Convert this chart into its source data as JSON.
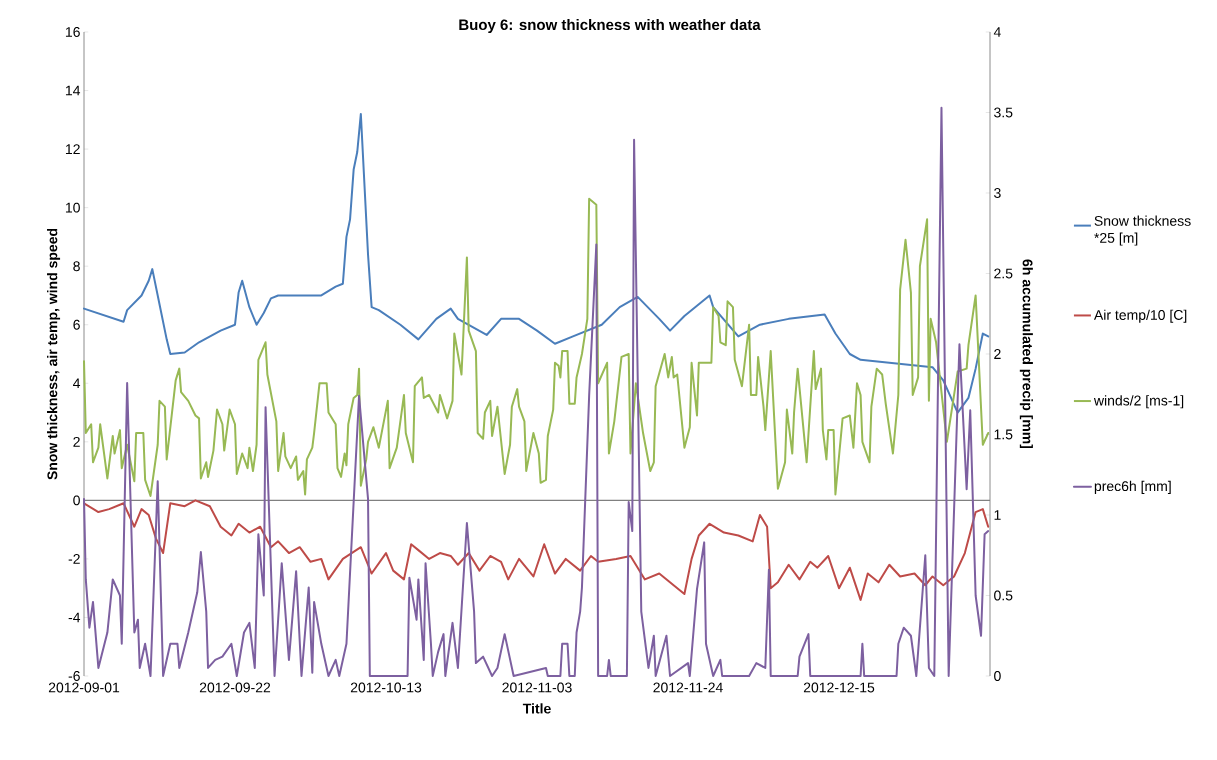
{
  "chart_data": {
    "type": "line",
    "title": "Buoy 6: snow thickness with weather data",
    "xlabel": "Title",
    "ylabel": "Snow thickness, air temp, wind speed",
    "y2label": "6h accumulated precip [mm]",
    "xlim": [
      "2012-09-01",
      "2013-01-05"
    ],
    "xticks": [
      "2012-09-01",
      "2012-09-22",
      "2012-10-13",
      "2012-11-03",
      "2012-11-24",
      "2012-12-15"
    ],
    "ylim": [
      -6,
      16
    ],
    "yticks": [
      -6,
      -4,
      -2,
      0,
      2,
      4,
      6,
      8,
      10,
      12,
      14,
      16
    ],
    "y2lim": [
      0,
      4
    ],
    "y2ticks": [
      0,
      0.5,
      1,
      1.5,
      2,
      2.5,
      3,
      3.5,
      4
    ],
    "legend": "right",
    "series": [
      {
        "name": "Snow thickness *25 [m]",
        "color": "#4a7ebb",
        "x": [
          "2012-09-01",
          "2012-09-06T12:00",
          "2012-09-07",
          "2012-09-09",
          "2012-09-10",
          "2012-09-10T12:00",
          "2012-09-11T12:00",
          "2012-09-12T12:00",
          "2012-09-13",
          "2012-09-15",
          "2012-09-17",
          "2012-09-20",
          "2012-09-22",
          "2012-09-22T12:00",
          "2012-09-23",
          "2012-09-24",
          "2012-09-25",
          "2012-09-26",
          "2012-09-27",
          "2012-09-28",
          "2012-10-04",
          "2012-10-06",
          "2012-10-07",
          "2012-10-07T12:00",
          "2012-10-08",
          "2012-10-08T12:00",
          "2012-10-09",
          "2012-10-09T12:00",
          "2012-10-10T12:00",
          "2012-10-11",
          "2012-10-12",
          "2012-10-15",
          "2012-10-17T12:00",
          "2012-10-20",
          "2012-10-22",
          "2012-10-23",
          "2012-10-27",
          "2012-10-29",
          "2012-10-31T12:00",
          "2012-11-03",
          "2012-11-05T12:00",
          "2012-11-08",
          "2012-11-12",
          "2012-11-14T12:00",
          "2012-11-17",
          "2012-11-20",
          "2012-11-21T12:00",
          "2012-11-23T12:00",
          "2012-11-27",
          "2012-11-27T12:00",
          "2012-12-01",
          "2012-12-04",
          "2012-12-08",
          "2012-12-13",
          "2012-12-14T12:00",
          "2012-12-16T12:00",
          "2012-12-18",
          "2012-12-28",
          "2012-12-29T12:00",
          "2012-12-31T12:00",
          "2013-01-02",
          "2013-01-03",
          "2013-01-04",
          "2013-01-04T18:00"
        ],
        "values": [
          6.55,
          6.1,
          6.5,
          7.0,
          7.5,
          7.9,
          6.7,
          5.5,
          5.0,
          5.05,
          5.4,
          5.8,
          6.0,
          7.1,
          7.5,
          6.6,
          6.0,
          6.4,
          6.9,
          7.0,
          7.0,
          7.3,
          7.4,
          9.0,
          9.6,
          11.3,
          11.9,
          13.2,
          8.4,
          6.6,
          6.5,
          6.0,
          5.5,
          6.2,
          6.55,
          6.2,
          5.65,
          6.2,
          6.2,
          5.8,
          5.35,
          5.6,
          6.0,
          6.6,
          6.95,
          6.2,
          5.8,
          6.3,
          7.0,
          6.6,
          5.6,
          6.0,
          6.2,
          6.35,
          5.7,
          5.0,
          4.8,
          4.55,
          4.1,
          3.0,
          3.5,
          4.5,
          5.7,
          5.6
        ]
      },
      {
        "name": "Air temp/10 [C]",
        "color": "#be4b48",
        "x": [
          "2012-09-01",
          "2012-09-03",
          "2012-09-04T12:00",
          "2012-09-06T12:00",
          "2012-09-08",
          "2012-09-09",
          "2012-09-10",
          "2012-09-11",
          "2012-09-12",
          "2012-09-13",
          "2012-09-15",
          "2012-09-16T12:00",
          "2012-09-18T12:00",
          "2012-09-20",
          "2012-09-21T12:00",
          "2012-09-22T12:00",
          "2012-09-24",
          "2012-09-25T12:00",
          "2012-09-27",
          "2012-09-28",
          "2012-09-29T12:00",
          "2012-10-01",
          "2012-10-02T12:00",
          "2012-10-04",
          "2012-10-05",
          "2012-10-07",
          "2012-10-09T12:00",
          "2012-10-11",
          "2012-10-13",
          "2012-10-14",
          "2012-10-15T12:00",
          "2012-10-16T12:00",
          "2012-10-17T12:00",
          "2012-10-19",
          "2012-10-20T12:00",
          "2012-10-22",
          "2012-10-23",
          "2012-10-24T12:00",
          "2012-10-26",
          "2012-10-27T12:00",
          "2012-10-29",
          "2012-10-30",
          "2012-10-31T12:00",
          "2012-11-02T12:00",
          "2012-11-04",
          "2012-11-05T12:00",
          "2012-11-07",
          "2012-11-09",
          "2012-11-10T12:00",
          "2012-11-11T12:00",
          "2012-11-14",
          "2012-11-16",
          "2012-11-18",
          "2012-11-20",
          "2012-11-22",
          "2012-11-23T12:00",
          "2012-11-24T12:00",
          "2012-11-25T12:00",
          "2012-11-27",
          "2012-11-29",
          "2012-12-01",
          "2012-12-03",
          "2012-12-04",
          "2012-12-05",
          "2012-12-05T12:00",
          "2012-12-06T12:00",
          "2012-12-08",
          "2012-12-09T12:00",
          "2012-12-11",
          "2012-12-12",
          "2012-12-13T12:00",
          "2012-12-15",
          "2012-12-16T12:00",
          "2012-12-18",
          "2012-12-19",
          "2012-12-20T12:00",
          "2012-12-22",
          "2012-12-23T12:00",
          "2012-12-25T12:00",
          "2012-12-27",
          "2012-12-28",
          "2012-12-29T12:00",
          "2012-12-31",
          "2013-01-01T12:00",
          "2013-01-03",
          "2013-01-04",
          "2013-01-04T18:00"
        ],
        "values": [
          -0.1,
          -0.4,
          -0.3,
          -0.1,
          -0.9,
          -0.3,
          -0.5,
          -1.3,
          -1.8,
          -0.1,
          -0.2,
          0.0,
          -0.2,
          -0.9,
          -1.2,
          -0.8,
          -1.1,
          -0.9,
          -1.6,
          -1.4,
          -1.8,
          -1.6,
          -2.1,
          -2.0,
          -2.7,
          -2.0,
          -1.6,
          -2.5,
          -1.8,
          -2.4,
          -2.7,
          -1.5,
          -1.7,
          -2.0,
          -1.8,
          -1.9,
          -2.2,
          -1.8,
          -2.4,
          -1.9,
          -2.1,
          -2.7,
          -2.0,
          -2.6,
          -1.5,
          -2.5,
          -2.0,
          -2.4,
          -1.9,
          -2.1,
          -2.0,
          -1.9,
          -2.7,
          -2.5,
          -2.9,
          -3.2,
          -2.0,
          -1.2,
          -0.8,
          -1.1,
          -1.2,
          -1.4,
          -0.5,
          -0.9,
          -3.0,
          -2.8,
          -2.2,
          -2.7,
          -2.1,
          -2.3,
          -1.9,
          -3.0,
          -2.3,
          -3.4,
          -2.5,
          -2.8,
          -2.2,
          -2.6,
          -2.5,
          -2.9,
          -2.6,
          -2.9,
          -2.6,
          -1.8,
          -0.4,
          -0.3,
          -0.9
        ]
      },
      {
        "name": "winds/2 [ms-1]",
        "color": "#98b954",
        "x": [
          "2012-09-01",
          "2012-09-01T06:00",
          "2012-09-02",
          "2012-09-02T06:00",
          "2012-09-03",
          "2012-09-03T06:00",
          "2012-09-04T06:00",
          "2012-09-05",
          "2012-09-05T06:00",
          "2012-09-06",
          "2012-09-06T06:00",
          "2012-09-07",
          "2012-09-08",
          "2012-09-08T06:00",
          "2012-09-09T06:00",
          "2012-09-09T12:00",
          "2012-09-10T06:00",
          "2012-09-11T06:00",
          "2012-09-11T12:00",
          "2012-09-12T06:00",
          "2012-09-12T12:00",
          "2012-09-13T18:00",
          "2012-09-14T06:00",
          "2012-09-14T12:00",
          "2012-09-15T12:00",
          "2012-09-16T12:00",
          "2012-09-17",
          "2012-09-17T06:00",
          "2012-09-18",
          "2012-09-18T06:00",
          "2012-09-19",
          "2012-09-19T12:00",
          "2012-09-20T06:00",
          "2012-09-20T12:00",
          "2012-09-21T06:00",
          "2012-09-22",
          "2012-09-22T06:00",
          "2012-09-23",
          "2012-09-23T18:00",
          "2012-09-24",
          "2012-09-24T12:00",
          "2012-09-25",
          "2012-09-25T06:00",
          "2012-09-26T06:00",
          "2012-09-26T12:00",
          "2012-09-27T18:00",
          "2012-09-28",
          "2012-09-28T18:00",
          "2012-09-29",
          "2012-09-29T18:00",
          "2012-09-30T12:00",
          "2012-09-30T18:00",
          "2012-10-01T12:00",
          "2012-10-01T18:00",
          "2012-10-02",
          "2012-10-02T18:00",
          "2012-10-03",
          "2012-10-03T18:00",
          "2012-10-04T18:00",
          "2012-10-05",
          "2012-10-06",
          "2012-10-06T06:00",
          "2012-10-06T18:00",
          "2012-10-07T06:00",
          "2012-10-07T12:00",
          "2012-10-07T18:00",
          "2012-10-08T12:00",
          "2012-10-09",
          "2012-10-09T06:00",
          "2012-10-09T12:00",
          "2012-10-10T06:00",
          "2012-10-10T12:00",
          "2012-10-11T06:00",
          "2012-10-12",
          "2012-10-13T06:00",
          "2012-10-13T12:00",
          "2012-10-14T12:00",
          "2012-10-15T12:00",
          "2012-10-15T18:00",
          "2012-10-16T18:00",
          "2012-10-17",
          "2012-10-18",
          "2012-10-18T06:00",
          "2012-10-19",
          "2012-10-20T06:00",
          "2012-10-20T12:00",
          "2012-10-21T12:00",
          "2012-10-22T06:00",
          "2012-10-22T12:00",
          "2012-10-23T12:00",
          "2012-10-24T06:00",
          "2012-10-24T12:00",
          "2012-10-25T12:00",
          "2012-10-25T18:00",
          "2012-10-26T12:00",
          "2012-10-26T18:00",
          "2012-10-27T12:00",
          "2012-10-27T18:00",
          "2012-10-28T12:00",
          "2012-10-29T12:00",
          "2012-10-30T06:00",
          "2012-10-30T12:00",
          "2012-10-31T06:00",
          "2012-10-31T12:00",
          "2012-11-01T06:00",
          "2012-11-01T12:00",
          "2012-11-02T12:00",
          "2012-11-03T06:00",
          "2012-11-03T12:00",
          "2012-11-04T06:00",
          "2012-11-04T12:00",
          "2012-11-05T06:00",
          "2012-11-05T12:00",
          "2012-11-06",
          "2012-11-06T06:00",
          "2012-11-06T12:00",
          "2012-11-07T06:00",
          "2012-11-07T12:00",
          "2012-11-08T06:00",
          "2012-11-08T12:00",
          "2012-11-09T06:00",
          "2012-11-10",
          "2012-11-10T06:00",
          "2012-11-11T06:00",
          "2012-11-11T12:00",
          "2012-11-12T18:00",
          "2012-11-13",
          "2012-11-13T18:00",
          "2012-11-14T18:00",
          "2012-11-15T18:00",
          "2012-11-16",
          "2012-11-16T18:00",
          "2012-11-17T18:00",
          "2012-11-18T18:00",
          "2012-11-19T06:00",
          "2012-11-19T12:00",
          "2012-11-20T18:00",
          "2012-11-21T06:00",
          "2012-11-21T18:00",
          "2012-11-22",
          "2012-11-22T12:00",
          "2012-11-23T12:00",
          "2012-11-24T06:00",
          "2012-11-24T12:00",
          "2012-11-25T06:00",
          "2012-11-25T12:00",
          "2012-11-27T06:00",
          "2012-11-27T12:00",
          "2012-11-28T06:00",
          "2012-11-28T12:00",
          "2012-11-29T06:00",
          "2012-11-29T12:00",
          "2012-11-30T06:00",
          "2012-11-30T12:00",
          "2012-12-01T12:00",
          "2012-12-02T12:00",
          "2012-12-02T18:00",
          "2012-12-03T12:00",
          "2012-12-03T18:00",
          "2012-12-04T12:00",
          "2012-12-04T18:00",
          "2012-12-05T12:00",
          "2012-12-06T12:00",
          "2012-12-07T12:00",
          "2012-12-07T18:00",
          "2012-12-08T12:00",
          "2012-12-08T18:00",
          "2012-12-09T06:00",
          "2012-12-10T12:00",
          "2012-12-11T12:00",
          "2012-12-11T18:00",
          "2012-12-12T12:00",
          "2012-12-12T18:00",
          "2012-12-13T06:00",
          "2012-12-13T12:00",
          "2012-12-14T06:00",
          "2012-12-14T12:00",
          "2012-12-15T12:00",
          "2012-12-16T12:00",
          "2012-12-17",
          "2012-12-17T12:00",
          "2012-12-18",
          "2012-12-18T06:00",
          "2012-12-19T06:00",
          "2012-12-19T12:00",
          "2012-12-20T06:00",
          "2012-12-21",
          "2012-12-21T12:00",
          "2012-12-22T12:00",
          "2012-12-23T06:00",
          "2012-12-23T12:00",
          "2012-12-24T06:00",
          "2012-12-25",
          "2012-12-25T06:00",
          "2012-12-26",
          "2012-12-26T06:00",
          "2012-12-27T06:00",
          "2012-12-27T12:00",
          "2012-12-27T18:00",
          "2012-12-28T12:00",
          "2012-12-30",
          "2012-12-31T12:00",
          "2013-01-01T18:00",
          "2013-01-02",
          "2013-01-03",
          "2013-01-04",
          "2013-01-04T18:00"
        ],
        "values": [
          4.75,
          2.3,
          2.6,
          1.3,
          1.8,
          2.6,
          0.75,
          2.2,
          1.6,
          2.4,
          1.1,
          1.9,
          0.65,
          2.3,
          2.3,
          0.7,
          0.15,
          1.9,
          3.4,
          3.2,
          1.4,
          4.1,
          4.5,
          3.7,
          3.4,
          2.9,
          2.8,
          0.75,
          1.3,
          0.8,
          1.7,
          3.1,
          2.6,
          1.7,
          3.1,
          2.6,
          0.9,
          1.6,
          1.1,
          1.8,
          1.0,
          1.9,
          4.8,
          5.4,
          4.3,
          2.7,
          1.0,
          2.3,
          1.5,
          1.1,
          1.5,
          0.7,
          1.0,
          0.2,
          1.4,
          1.8,
          2.3,
          4.0,
          4.0,
          3.0,
          2.6,
          1.1,
          0.8,
          1.6,
          1.2,
          2.6,
          3.5,
          3.6,
          4.5,
          0.5,
          1.4,
          2.0,
          2.5,
          1.8,
          3.4,
          1.1,
          1.8,
          3.6,
          2.3,
          1.3,
          3.9,
          4.2,
          3.5,
          3.6,
          3.0,
          3.6,
          2.8,
          3.4,
          5.7,
          4.3,
          8.3,
          5.8,
          5.1,
          2.3,
          2.1,
          3.0,
          3.4,
          2.2,
          3.2,
          0.9,
          1.9,
          3.2,
          3.8,
          3.2,
          2.7,
          1.0,
          2.3,
          1.6,
          0.6,
          0.7,
          2.2,
          3.1,
          4.7,
          4.6,
          4.2,
          5.1,
          5.1,
          3.3,
          3.3,
          4.2,
          5.0,
          6.2,
          10.3,
          10.1,
          4.0,
          4.7,
          1.6,
          2.7,
          4.9,
          5.0,
          1.6,
          4.0,
          2.3,
          1.0,
          1.3,
          3.9,
          5.0,
          4.2,
          4.9,
          4.2,
          4.3,
          1.8,
          2.5,
          4.7,
          2.9,
          4.7,
          4.7,
          6.6,
          6.3,
          5.4,
          5.3,
          6.8,
          6.6,
          4.8,
          3.9,
          6.0,
          3.6,
          3.6,
          4.9,
          3.2,
          2.4,
          5.1,
          0.4,
          1.3,
          3.1,
          1.6,
          3.0,
          4.5,
          1.3,
          5.1,
          3.8,
          4.5,
          2.4,
          1.4,
          2.4,
          2.4,
          0.2,
          2.8,
          2.9,
          1.8,
          4.0,
          3.6,
          2.0,
          1.3,
          3.2,
          4.5,
          4.3,
          3.3,
          1.6,
          3.6,
          7.2,
          8.9,
          7.1,
          3.6,
          4.2,
          8.0,
          9.6,
          3.4,
          6.2,
          5.4,
          2.0,
          4.4,
          4.5,
          5.3,
          7.0,
          1.9,
          2.3
        ]
      },
      {
        "name": "prec6h [mm]",
        "color": "#7d60a0",
        "axis": "y2",
        "x": [
          "2012-09-01",
          "2012-09-01T06:00",
          "2012-09-01T18:00",
          "2012-09-02T06:00",
          "2012-09-03",
          "2012-09-04T06:00",
          "2012-09-05",
          "2012-09-06",
          "2012-09-06T06:00",
          "2012-09-07",
          "2012-09-08",
          "2012-09-08T12:00",
          "2012-09-08T18:00",
          "2012-09-09T12:00",
          "2012-09-10T06:00",
          "2012-09-11T06:00",
          "2012-09-12",
          "2012-09-13",
          "2012-09-14",
          "2012-09-14T06:00",
          "2012-09-15T12:00",
          "2012-09-16T18:00",
          "2012-09-17T06:00",
          "2012-09-18",
          "2012-09-18T06:00",
          "2012-09-19T06:00",
          "2012-09-20T06:00",
          "2012-09-21T12:00",
          "2012-09-22T06:00",
          "2012-09-23T06:00",
          "2012-09-24",
          "2012-09-24T18:00",
          "2012-09-25T06:00",
          "2012-09-26",
          "2012-09-26T06:00",
          "2012-09-27T12:00",
          "2012-09-28T12:00",
          "2012-09-29T12:00",
          "2012-09-30T12:00",
          "2012-10-01T06:00",
          "2012-10-02T06:00",
          "2012-10-02T18:00",
          "2012-10-03",
          "2012-10-04",
          "2012-10-05",
          "2012-10-06",
          "2012-10-06T12:00",
          "2012-10-07T12:00",
          "2012-10-09T06:00",
          "2012-10-10T12:00",
          "2012-10-10T18:00",
          "2012-10-16",
          "2012-10-16T06:00",
          "2012-10-17T06:00",
          "2012-10-17T12:00",
          "2012-10-18T06:00",
          "2012-10-18T12:00",
          "2012-10-19T06:00",
          "2012-10-19T12:00",
          "2012-10-20T06:00",
          "2012-10-21",
          "2012-10-21T06:00",
          "2012-10-22T06:00",
          "2012-10-23",
          "2012-10-24T06:00",
          "2012-10-25T06:00",
          "2012-10-25T12:00",
          "2012-10-26T12:00",
          "2012-10-27T18:00",
          "2012-10-28T12:00",
          "2012-10-29T12:00",
          "2012-10-30T18:00",
          "2012-11-04T06:00",
          "2012-11-04T12:00",
          "2012-11-06T06:00",
          "2012-11-06T12:00",
          "2012-11-07T06:00",
          "2012-11-07T12:00",
          "2012-11-08T06:00",
          "2012-11-08T12:00",
          "2012-11-09",
          "2012-11-09T06:00",
          "2012-11-10T06:00",
          "2012-11-11T06:00",
          "2012-11-11T12:00",
          "2012-11-12T18:00",
          "2012-11-13",
          "2012-11-13T06:00",
          "2012-11-15T12:00",
          "2012-11-15T18:00",
          "2012-11-16T06:00",
          "2012-11-16T12:00",
          "2012-11-17T12:00",
          "2012-11-18T12:00",
          "2012-11-19T06:00",
          "2012-11-19T12:00",
          "2012-11-21",
          "2012-11-21T12:00",
          "2012-11-24",
          "2012-11-24T06:00",
          "2012-11-25T06:00",
          "2012-11-26T06:00",
          "2012-11-26T12:00",
          "2012-11-27T12:00",
          "2012-11-28T12:00",
          "2012-11-28T18:00",
          "2012-12-02T12:00",
          "2012-12-03T12:00",
          "2012-12-04T18:00",
          "2012-12-05T06:00",
          "2012-12-05T12:00",
          "2012-12-09T06:00",
          "2012-12-09T12:00",
          "2012-12-10T18:00",
          "2012-12-11",
          "2012-12-18",
          "2012-12-18T06:00",
          "2012-12-18T12:00",
          "2012-12-23",
          "2012-12-23T06:00",
          "2012-12-24",
          "2012-12-25",
          "2012-12-25T18:00",
          "2012-12-27",
          "2012-12-27T12:00",
          "2012-12-28T06:00",
          "2012-12-29T06:00",
          "2012-12-30T06:00",
          "2012-12-31T18:00",
          "2013-01-01T18:00",
          "2013-01-02T06:00",
          "2013-01-03",
          "2013-01-03T18:00",
          "2013-01-04T06:00",
          "2013-01-04T18:00"
        ],
        "values": [
          1.1,
          0.6,
          0.3,
          0.46,
          0.05,
          0.27,
          0.6,
          0.5,
          0.2,
          1.82,
          0.27,
          0.35,
          0.05,
          0.2,
          0,
          1.21,
          0,
          0.2,
          0.2,
          0.05,
          0.27,
          0.52,
          0.77,
          0.4,
          0.05,
          0.1,
          0.12,
          0.2,
          0,
          0.27,
          0.33,
          0.05,
          0.88,
          0.5,
          1.67,
          0,
          0.7,
          0.1,
          0.65,
          0,
          0.55,
          0.02,
          0.46,
          0.2,
          0,
          0.1,
          0,
          0.2,
          1.74,
          1.1,
          0,
          0,
          0.61,
          0.35,
          0.6,
          0.1,
          0.7,
          0.2,
          0,
          0.15,
          0.26,
          0,
          0.33,
          0.05,
          0.95,
          0.4,
          0.08,
          0.12,
          0,
          0.05,
          0.26,
          0,
          0.05,
          0,
          0,
          0.2,
          0.2,
          0,
          0,
          0.27,
          0.4,
          0.55,
          1.74,
          2.68,
          0,
          0,
          0.1,
          0,
          0,
          1.08,
          0.9,
          3.33,
          0.4,
          0.05,
          0.25,
          0,
          0.25,
          0,
          0.08,
          0,
          0.54,
          0.83,
          0.2,
          0,
          0.1,
          0,
          0,
          0.08,
          0.05,
          0.66,
          0,
          0,
          0.12,
          0.26,
          0,
          0,
          0.2,
          0,
          0,
          0.2,
          0.3,
          0.25,
          0,
          0.75,
          0.05,
          0,
          3.53,
          0,
          2.06,
          1.16,
          1.65,
          0.5,
          0.25,
          0.88,
          0.9
        ]
      }
    ]
  }
}
